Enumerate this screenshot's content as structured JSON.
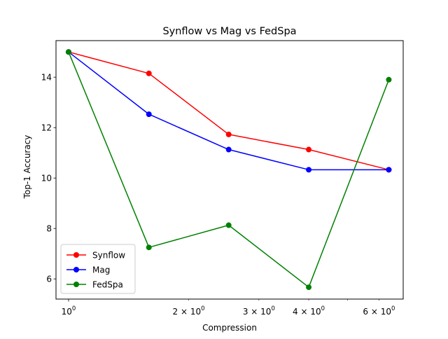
{
  "chart_data": {
    "type": "line",
    "title": "Synflow vs Mag vs FedSpa",
    "xlabel": "Compression",
    "ylabel": "Top-1 Accuracy",
    "xscale": "log",
    "xlim": [
      0.93,
      6.9
    ],
    "ylim": [
      5.2,
      15.45
    ],
    "x": [
      1,
      1.59,
      2.52,
      4,
      6.35
    ],
    "series": [
      {
        "name": "Synflow",
        "color": "#ff0000",
        "values": [
          15.0,
          14.15,
          11.73,
          11.13,
          10.33
        ]
      },
      {
        "name": "Mag",
        "color": "#0000ff",
        "values": [
          15.0,
          12.53,
          11.13,
          10.33,
          10.33
        ]
      },
      {
        "name": "FedSpa",
        "color": "#008000",
        "values": [
          15.0,
          7.25,
          8.13,
          5.67,
          13.9
        ]
      }
    ],
    "y_ticks": [
      {
        "value": 6,
        "label": "6"
      },
      {
        "value": 8,
        "label": "8"
      },
      {
        "value": 10,
        "label": "10"
      },
      {
        "value": 12,
        "label": "12"
      },
      {
        "value": 14,
        "label": "14"
      }
    ],
    "x_major_ticks": [
      {
        "value": 1,
        "base": "10",
        "exp": "0"
      }
    ],
    "x_minor_ticks": [
      {
        "value": 2,
        "base": "2 × 10",
        "exp": "0"
      },
      {
        "value": 3,
        "base": "3 × 10",
        "exp": "0"
      },
      {
        "value": 4,
        "base": "4 × 10",
        "exp": "0"
      },
      {
        "value": 5
      },
      {
        "value": 6,
        "base": "6 × 10",
        "exp": "0"
      }
    ],
    "legend": {
      "position": "lower-left"
    },
    "grid": false
  }
}
